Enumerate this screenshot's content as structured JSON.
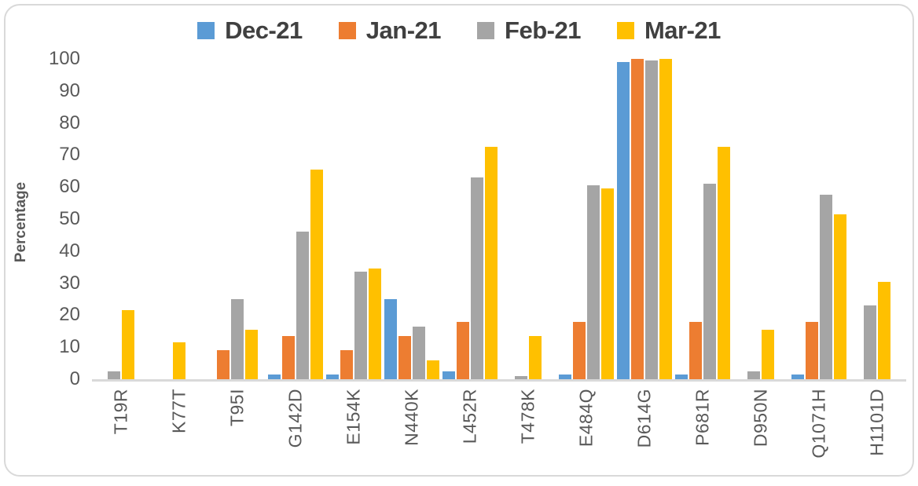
{
  "frame": {
    "background_color": "#ffffff",
    "border_color": "#d9d9d9"
  },
  "style": {
    "axis_text_color": "#595959",
    "legend_text_color": "#404040",
    "axis_line_color": "#d9d9d9"
  },
  "chart_data": {
    "type": "bar",
    "title": "",
    "xlabel": "",
    "ylabel": "Percentage",
    "ylim": [
      0,
      100
    ],
    "ytick_step": 10,
    "grid": false,
    "legend_position": "top-center",
    "categories": [
      "T19R",
      "K77T",
      "T95I",
      "G142D",
      "E154K",
      "N440K",
      "L452R",
      "T478K",
      "E484Q",
      "D614G",
      "P681R",
      "D950N",
      "Q1071H",
      "H1101D"
    ],
    "series": [
      {
        "name": "Dec-21",
        "color": "#5B9BD5",
        "values": [
          0,
          0,
          0,
          1.5,
          1.5,
          25,
          2.5,
          0,
          1.5,
          99,
          1.5,
          0,
          1.5,
          0
        ]
      },
      {
        "name": "Jan-21",
        "color": "#ED7D31",
        "values": [
          0,
          0,
          9,
          13.5,
          9,
          13.5,
          18,
          0,
          18,
          100,
          18,
          0,
          18,
          0
        ]
      },
      {
        "name": "Feb-21",
        "color": "#A5A5A5",
        "values": [
          2.5,
          0,
          25,
          46,
          33.5,
          16.5,
          63,
          1,
          60.5,
          99.5,
          61,
          2.5,
          57.5,
          23
        ]
      },
      {
        "name": "Mar-21",
        "color": "#FFC000",
        "values": [
          21.5,
          11.5,
          15.5,
          65.5,
          34.5,
          6,
          72.5,
          13.5,
          59.5,
          100,
          72.5,
          15.5,
          51.5,
          30.5
        ]
      }
    ]
  }
}
